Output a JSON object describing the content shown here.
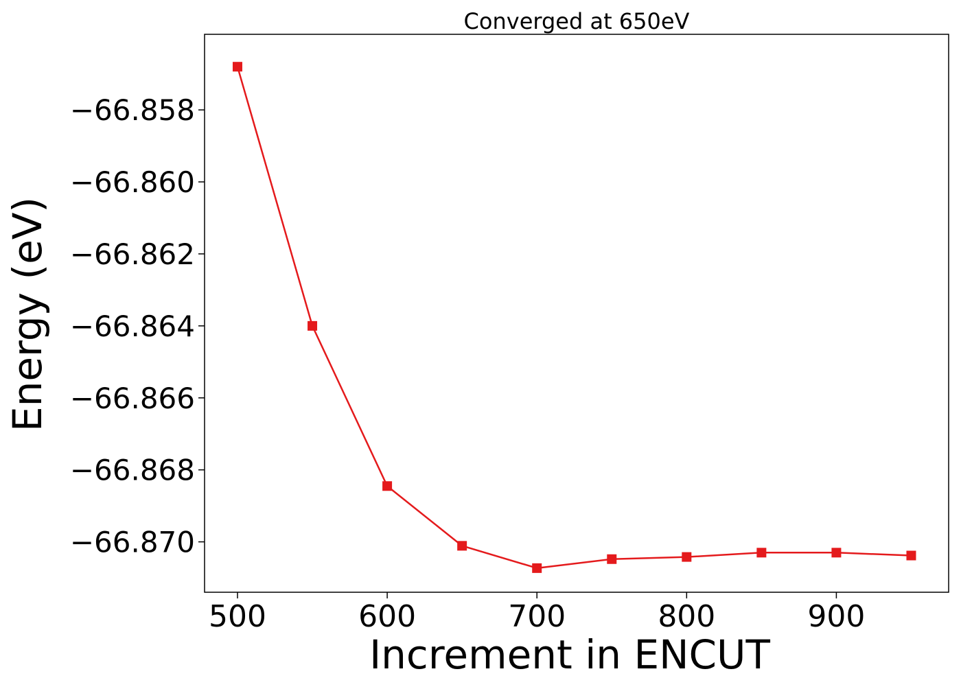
{
  "chart_data": {
    "type": "line",
    "title": "Converged at 650eV",
    "xlabel": "Increment in ENCUT",
    "ylabel": "Energy (eV)",
    "xlim": [
      478,
      975
    ],
    "ylim": [
      -66.8714,
      -66.8559
    ],
    "x_ticks": [
      500,
      600,
      700,
      800,
      900
    ],
    "x_tick_labels": [
      "500",
      "600",
      "700",
      "800",
      "900"
    ],
    "y_ticks": [
      -66.858,
      -66.86,
      -66.862,
      -66.864,
      -66.866,
      -66.868,
      -66.87
    ],
    "y_tick_labels": [
      "−66.858",
      "−66.860",
      "−66.862",
      "−66.864",
      "−66.866",
      "−66.868",
      "−66.870"
    ],
    "grid": false,
    "series": [
      {
        "color": "#e41a1c",
        "marker": "square",
        "x": [
          500,
          550,
          600,
          650,
          700,
          750,
          800,
          850,
          900,
          950
        ],
        "values": [
          -66.8568,
          -66.864,
          -66.86845,
          -66.87011,
          -66.87073,
          -66.87048,
          -66.87042,
          -66.8703,
          -66.8703,
          -66.87038
        ]
      }
    ]
  }
}
